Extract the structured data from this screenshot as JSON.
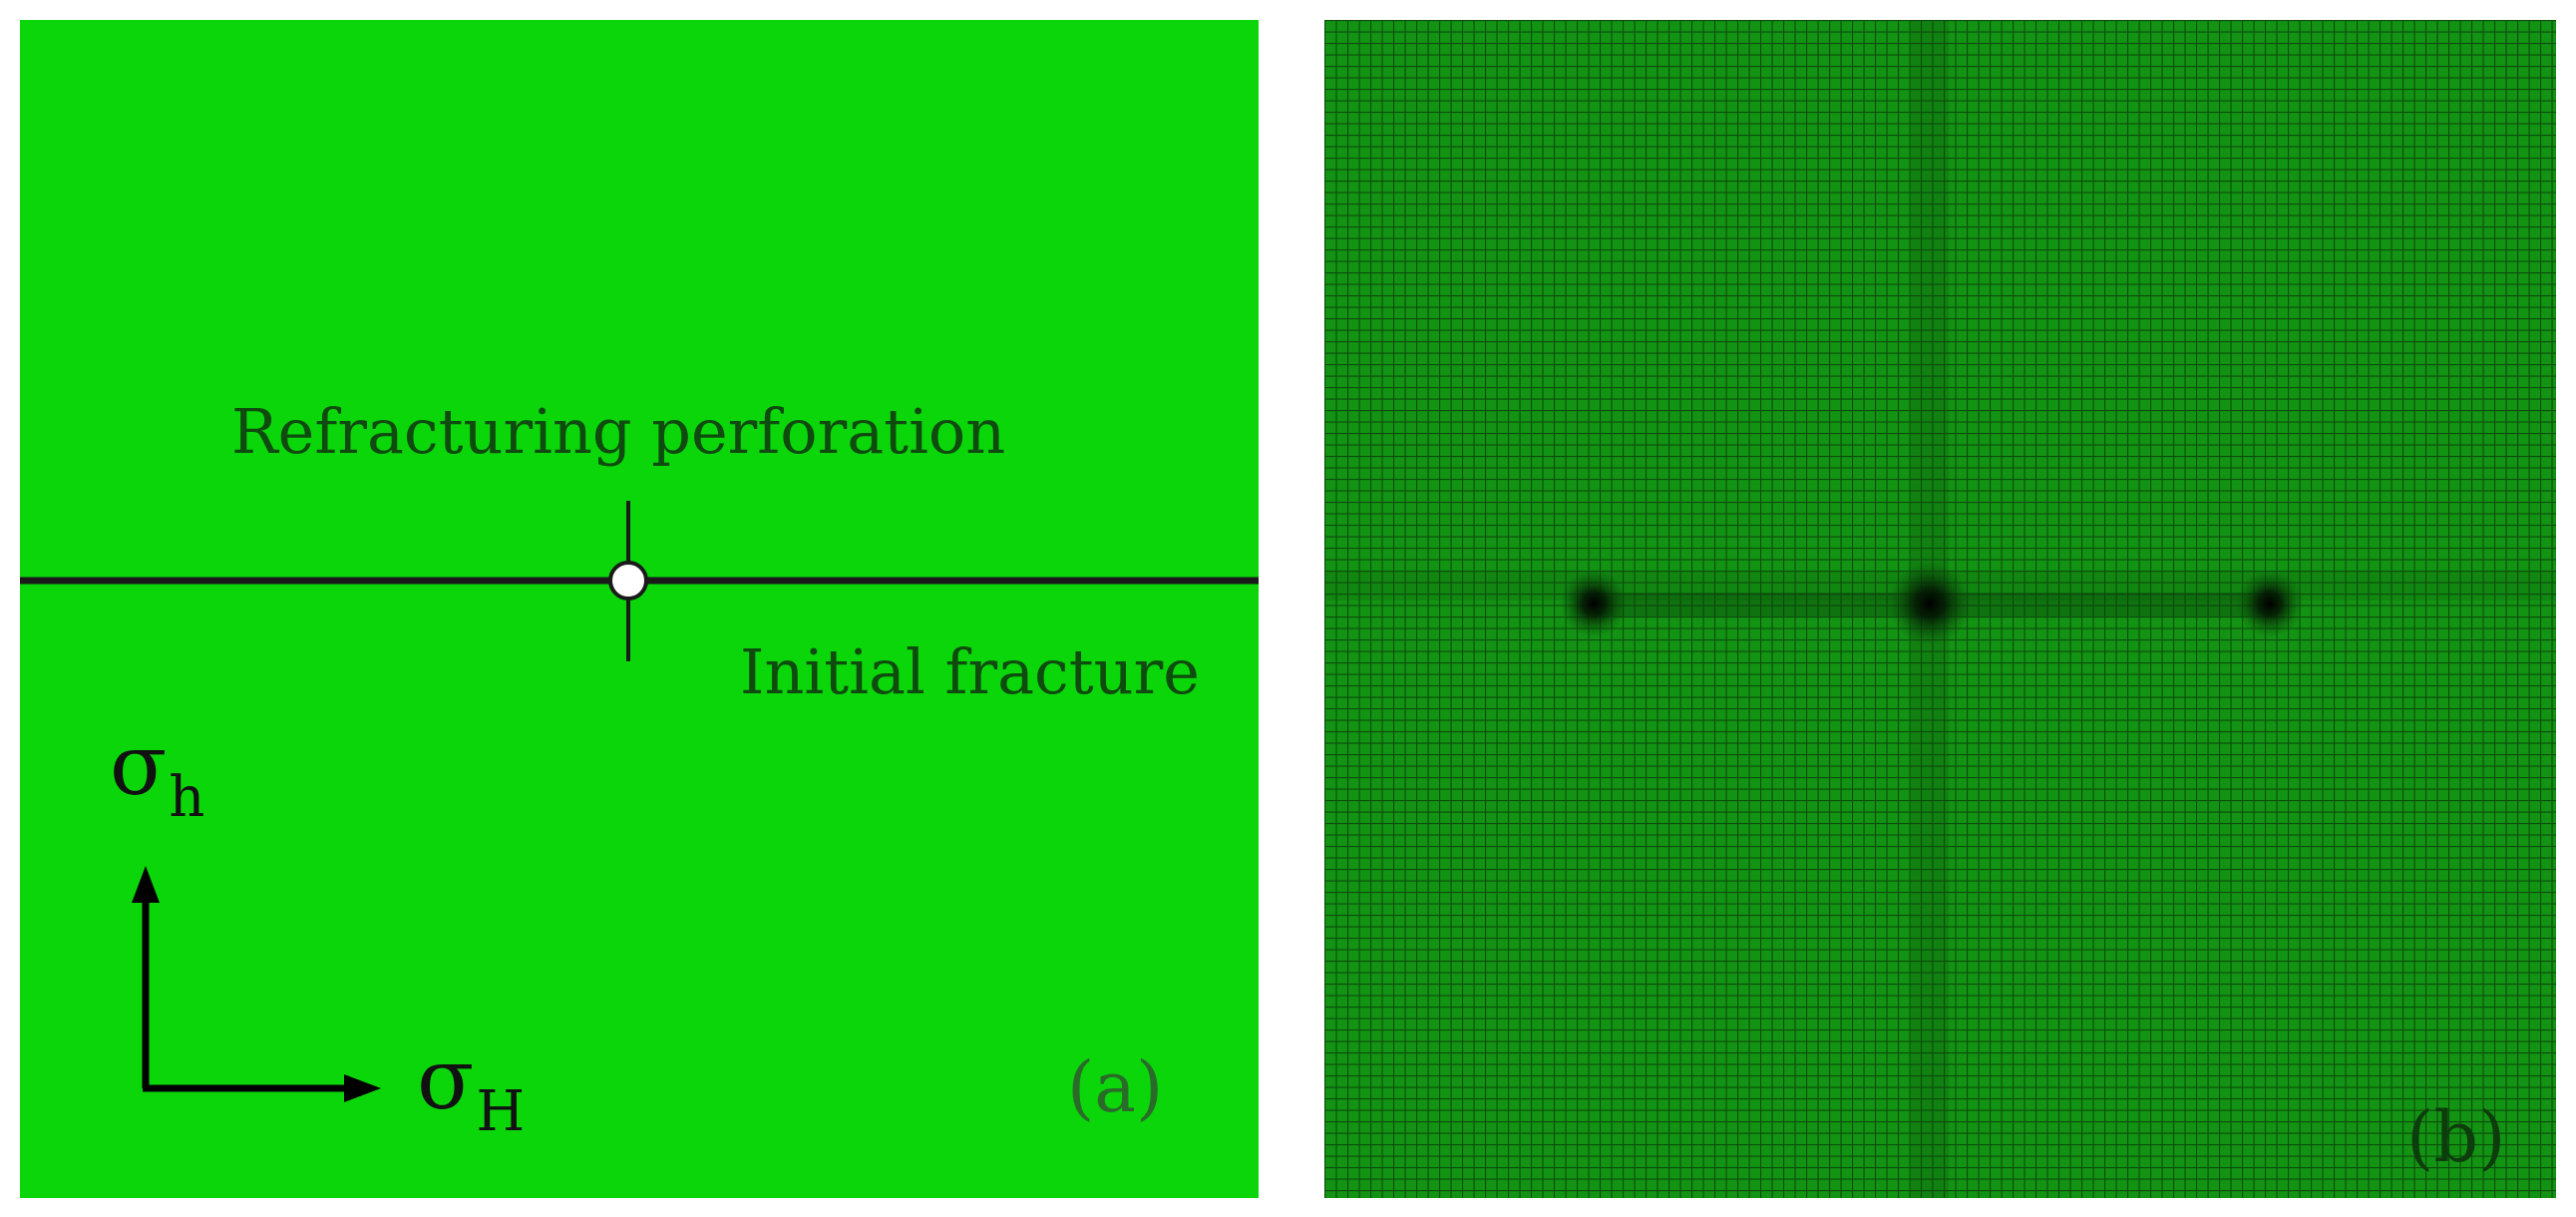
{
  "panel_a": {
    "perforation_label": "Refracturing perforation",
    "fracture_label": "Initial fracture",
    "sigma_min": {
      "symbol": "σ",
      "subscript": "h"
    },
    "sigma_max": {
      "symbol": "σ",
      "subscript": "H"
    },
    "panel_label": "(a)"
  },
  "panel_b": {
    "panel_label": "(b)"
  },
  "colors": {
    "model_fill": "#0ad60a",
    "mesh_fill": "#138f13",
    "mesh_line": "#0b4d0b",
    "fracture_line": "#1a1a1a"
  }
}
